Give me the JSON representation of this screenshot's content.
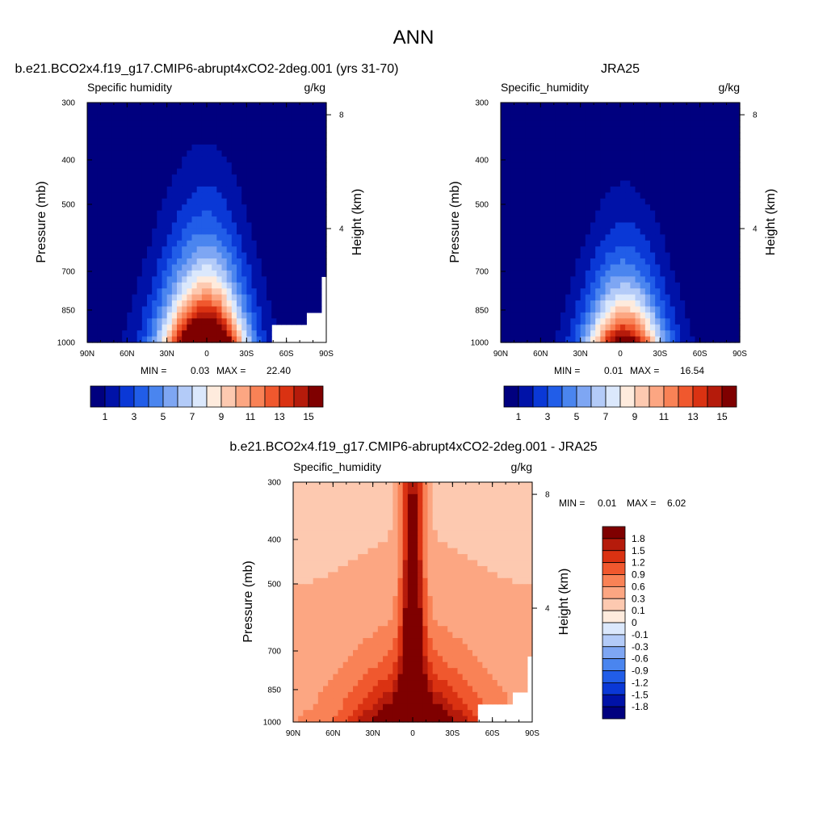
{
  "figure_title": "ANN",
  "colors": {
    "sequential": [
      "#00007f",
      "#0012a8",
      "#0a38d6",
      "#215de8",
      "#4a85ef",
      "#7ea6f3",
      "#b3cbf8",
      "#dbe8fc",
      "#feebdd",
      "#fdc9b0",
      "#fca682",
      "#f98256",
      "#f0582e",
      "#da3212",
      "#b51b0b",
      "#7f0000"
    ],
    "diverging": [
      "#00007f",
      "#0012a8",
      "#0a38d6",
      "#215de8",
      "#4a85ef",
      "#7ea6f3",
      "#b3cbf8",
      "#dbe8fc",
      "#feebdd",
      "#fdc9b0",
      "#fca682",
      "#f98256",
      "#f0582e",
      "#da3212",
      "#b51b0b",
      "#7f0000"
    ]
  },
  "chart_data": [
    {
      "type": "heatmap",
      "panel_title": "b.e21.BCO2x4.f19_g17.CMIP6-abrupt4xCO2-2deg.001 (yrs 31-70)",
      "field_label": "Specific humidity",
      "units": "g/kg",
      "ylabel": "Pressure (mb)",
      "ylabel_right": "Height (km)",
      "x_ticks": [
        "90N",
        "60N",
        "30N",
        "0",
        "30S",
        "60S",
        "90S"
      ],
      "y_ticks": [
        "300",
        "400",
        "500",
        "700",
        "850",
        "1000"
      ],
      "height_ticks": [
        "8",
        "4"
      ],
      "ylim": [
        1000,
        300
      ],
      "min_label": "MIN =",
      "min_value": "0.03",
      "max_label": "MAX =",
      "max_value": "22.40",
      "colorbar_labels": [
        "1",
        "3",
        "5",
        "7",
        "9",
        "11",
        "13",
        "15"
      ],
      "peak": 22.4,
      "floor": 0.03,
      "center_lat": 0
    },
    {
      "type": "heatmap",
      "panel_title": "JRA25",
      "field_label": "Specific_humidity",
      "units": "g/kg",
      "ylabel": "Pressure (mb)",
      "ylabel_right": "Height (km)",
      "x_ticks": [
        "90N",
        "60N",
        "30N",
        "0",
        "30S",
        "60S",
        "90S"
      ],
      "y_ticks": [
        "300",
        "400",
        "500",
        "700",
        "850",
        "1000"
      ],
      "height_ticks": [
        "8",
        "4"
      ],
      "ylim": [
        1000,
        300
      ],
      "min_label": "MIN =",
      "min_value": "0.01",
      "max_label": "MAX =",
      "max_value": "16.54",
      "colorbar_labels": [
        "1",
        "3",
        "5",
        "7",
        "9",
        "11",
        "13",
        "15"
      ],
      "peak": 16.54,
      "floor": 0.01,
      "center_lat": -3
    },
    {
      "type": "heatmap",
      "panel_title": "b.e21.BCO2x4.f19_g17.CMIP6-abrupt4xCO2-2deg.001 - JRA25",
      "field_label": "Specific_humidity",
      "units": "g/kg",
      "ylabel": "Pressure (mb)",
      "ylabel_right": "Height (km)",
      "x_ticks": [
        "90N",
        "60N",
        "30N",
        "0",
        "30S",
        "60S",
        "90S"
      ],
      "y_ticks": [
        "300",
        "400",
        "500",
        "700",
        "850",
        "1000"
      ],
      "height_ticks": [
        "8",
        "4"
      ],
      "ylim": [
        1000,
        300
      ],
      "min_label": "MIN =",
      "min_value": "0.01",
      "max_label": "MAX =",
      "max_value": "6.02",
      "colorbar_labels": [
        "1.8",
        "1.5",
        "1.2",
        "0.9",
        "0.6",
        "0.3",
        "0.1",
        "0",
        "-0.1",
        "-0.3",
        "-0.6",
        "-0.9",
        "-1.2",
        "-1.5",
        "-1.8"
      ],
      "peak": 6.02,
      "floor": 0.01
    }
  ]
}
